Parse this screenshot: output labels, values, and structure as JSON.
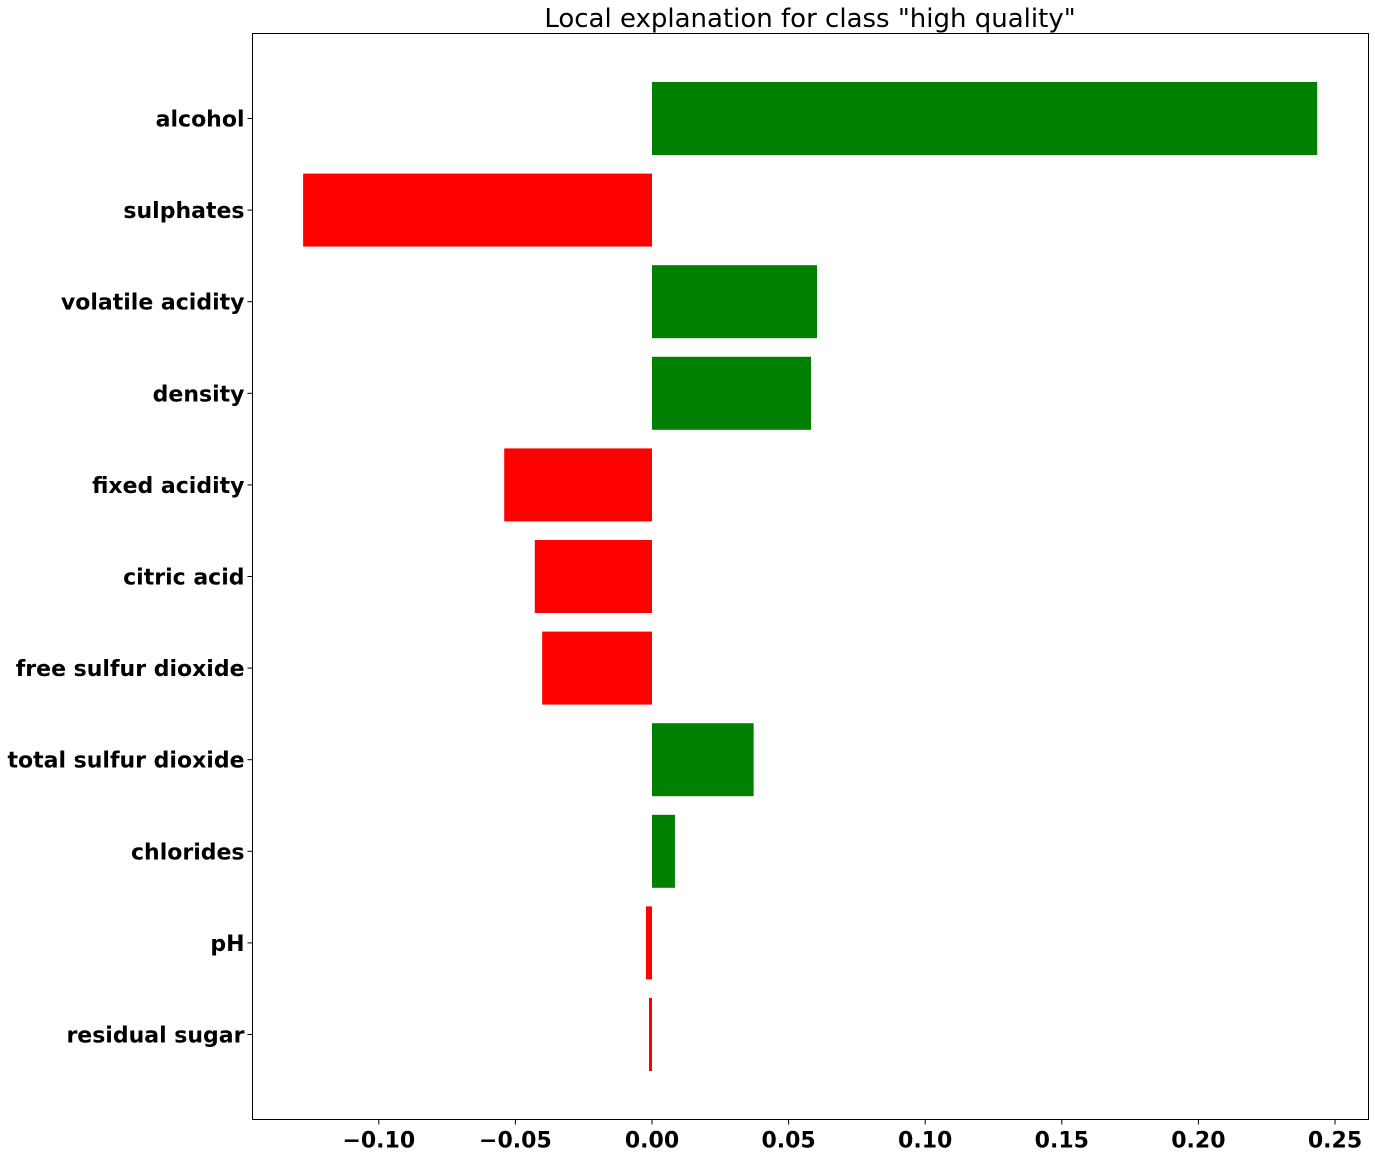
{
  "chart_data": {
    "type": "bar",
    "orientation": "horizontal",
    "title": "Local explanation for class \"high quality\"",
    "xlabel": "",
    "ylabel": "",
    "categories": [
      "alcohol",
      "sulphates",
      "volatile acidity",
      "density",
      "fixed acidity",
      "citric acid",
      "free sulfur dioxide",
      "total sulfur dioxide",
      "chlorides",
      "pH",
      "residual sugar"
    ],
    "values": [
      0.2435,
      -0.1277,
      0.0604,
      0.0582,
      -0.0541,
      -0.0429,
      -0.0402,
      0.0372,
      0.0084,
      -0.0022,
      -0.0011
    ],
    "xlim": [
      -0.1464,
      0.2617
    ],
    "xticks": [
      -0.1,
      -0.05,
      0.0,
      0.05,
      0.1,
      0.15,
      0.2,
      0.25
    ],
    "xtick_labels": [
      "−0.10",
      "−0.05",
      "0.00",
      "0.05",
      "0.10",
      "0.15",
      "0.20",
      "0.25"
    ],
    "positive_color": "#008000",
    "negative_color": "#ff0000",
    "grid": false,
    "legend": "none"
  }
}
